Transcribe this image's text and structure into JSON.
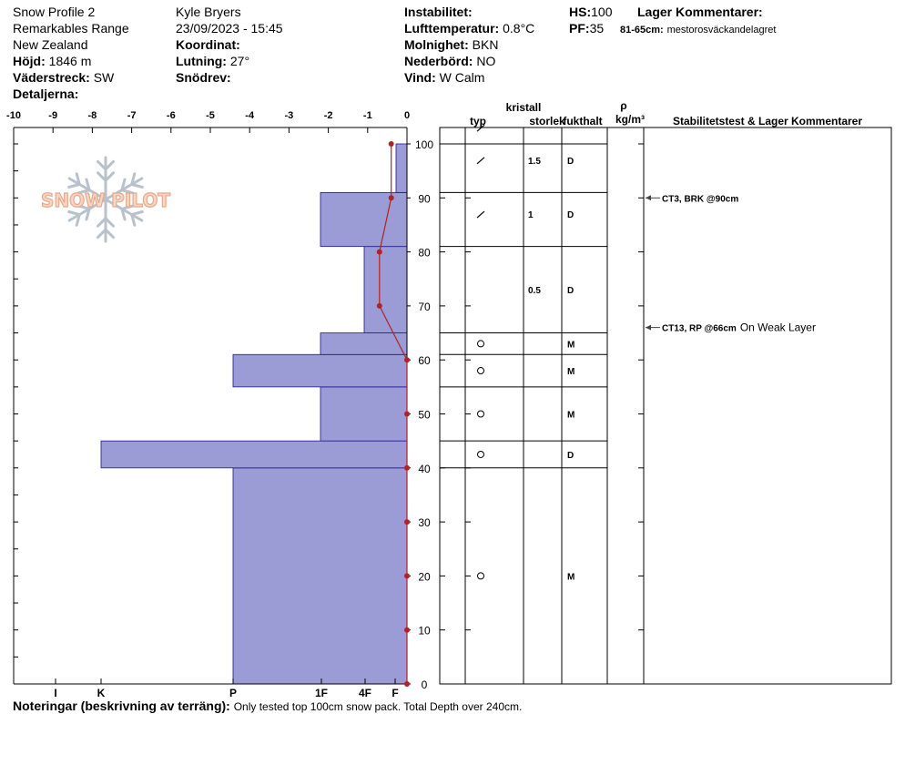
{
  "header": {
    "profile_name": "Snow Profile 2",
    "location": "Remarkables Range",
    "country": "New Zealand",
    "elevation_label": "Höjd:",
    "elevation_value": "1846 m",
    "aspect_label": "Väderstreck:",
    "aspect_value": "SW",
    "details_label": "Detaljerna:",
    "observer": "Kyle Bryers",
    "datetime": "23/09/2023 - 15:45",
    "coordinate_label": "Koordinat:",
    "slope_label": "Lutning:",
    "slope_value": "27°",
    "drift_label": "Snödrev:",
    "instability_label": "Instabilitet:",
    "air_temp_label": "Lufttemperatur:",
    "air_temp_value": "0.8°C",
    "sky_label": "Molnighet:",
    "sky_value": "BKN",
    "precip_label": "Nederbörd:",
    "precip_value": "NO",
    "wind_label": "Vind:",
    "wind_value": "W Calm",
    "hs_label": "HS:",
    "hs_value": "100",
    "pf_label": "PF:",
    "pf_value": "35",
    "layer_comments_label": "Lager Kommentarer:",
    "layer_comment_range": "81-65cm:",
    "layer_comment_text": "mestorosväckandelagret"
  },
  "notes": {
    "label": "Noteringar (beskrivning av terräng):",
    "text": "Only tested top 100cm snow pack. Total Depth over 240cm."
  },
  "watermark": {
    "text": "SNOW PILOT"
  },
  "chart_data": {
    "type": "bar",
    "temperature_axis": {
      "ticks": [
        "-10",
        "-9",
        "-8",
        "-7",
        "-6",
        "-5",
        "-4",
        "-3",
        "-2",
        "-1",
        "0"
      ],
      "range": [
        -10,
        0
      ]
    },
    "height_axis": {
      "ticks": [
        "0",
        "10",
        "20",
        "30",
        "40",
        "50",
        "60",
        "70",
        "80",
        "90",
        "100"
      ],
      "range": [
        0,
        103
      ],
      "unit": "cm"
    },
    "hardness_labels": [
      "I",
      "K",
      "P",
      "1F",
      "4F",
      "F"
    ],
    "hardness_layers": [
      {
        "from": 0,
        "to": 40,
        "hardness": "P"
      },
      {
        "from": 40,
        "to": 45,
        "hardness": "K+"
      },
      {
        "from": 45,
        "to": 55,
        "hardness": "1F"
      },
      {
        "from": 55,
        "to": 61,
        "hardness": "P"
      },
      {
        "from": 61,
        "to": 65,
        "hardness": "1F"
      },
      {
        "from": 65,
        "to": 81,
        "hardness": "4F"
      },
      {
        "from": 81,
        "to": 91,
        "hardness": "1F"
      },
      {
        "from": 91,
        "to": 100,
        "hardness": "F"
      }
    ],
    "temperature_profile": [
      {
        "height": 100,
        "temp": -0.4
      },
      {
        "height": 90,
        "temp": -0.4
      },
      {
        "height": 80,
        "temp": -0.7
      },
      {
        "height": 70,
        "temp": -0.7
      },
      {
        "height": 60,
        "temp": 0
      },
      {
        "height": 50,
        "temp": 0
      },
      {
        "height": 40,
        "temp": 0
      },
      {
        "height": 30,
        "temp": 0
      },
      {
        "height": 20,
        "temp": 0
      },
      {
        "height": 10,
        "temp": 0
      },
      {
        "height": 0,
        "temp": 0
      }
    ],
    "column_headers": {
      "crystal": "kristall",
      "type": "typ",
      "size": "storlek",
      "moisture": "fukthalt",
      "rho": "ρ",
      "density_unit": "kg/m³",
      "stability": "Stabilitetstest & Lager Kommentarer"
    },
    "layers": [
      {
        "top": 100,
        "bottom": 91,
        "grain": "decomposing",
        "grain_y": 97,
        "size": "1.5",
        "moisture": "D"
      },
      {
        "top": 91,
        "bottom": 81,
        "grain": "decomposing",
        "grain_y": 87,
        "size": "1",
        "moisture": "D"
      },
      {
        "top": 81,
        "bottom": 65,
        "grain": "",
        "size": "0.5",
        "moisture": "D"
      },
      {
        "top": 65,
        "bottom": 61,
        "grain": "rounded",
        "size": "",
        "moisture": "M"
      },
      {
        "top": 61,
        "bottom": 55,
        "grain": "rounded",
        "size": "",
        "moisture": "M"
      },
      {
        "top": 55,
        "bottom": 45,
        "grain": "rounded",
        "size": "",
        "moisture": "M"
      },
      {
        "top": 45,
        "bottom": 40,
        "grain": "rounded",
        "size": "",
        "moisture": "D"
      },
      {
        "top": 40,
        "bottom": 0,
        "grain": "rounded",
        "size": "",
        "moisture": "M"
      }
    ],
    "top_grain_mark": {
      "height": 103,
      "grain": "decomposing"
    },
    "stability_tests": [
      {
        "height": 90,
        "test": "CT3, BRK @90cm",
        "comment": ""
      },
      {
        "height": 66,
        "test": "CT13, RP @66cm",
        "comment": "On Weak Layer"
      }
    ],
    "colors": {
      "hardness_fill": "#9b9bd6",
      "temperature": "#b22222",
      "grid": "#000000"
    }
  }
}
